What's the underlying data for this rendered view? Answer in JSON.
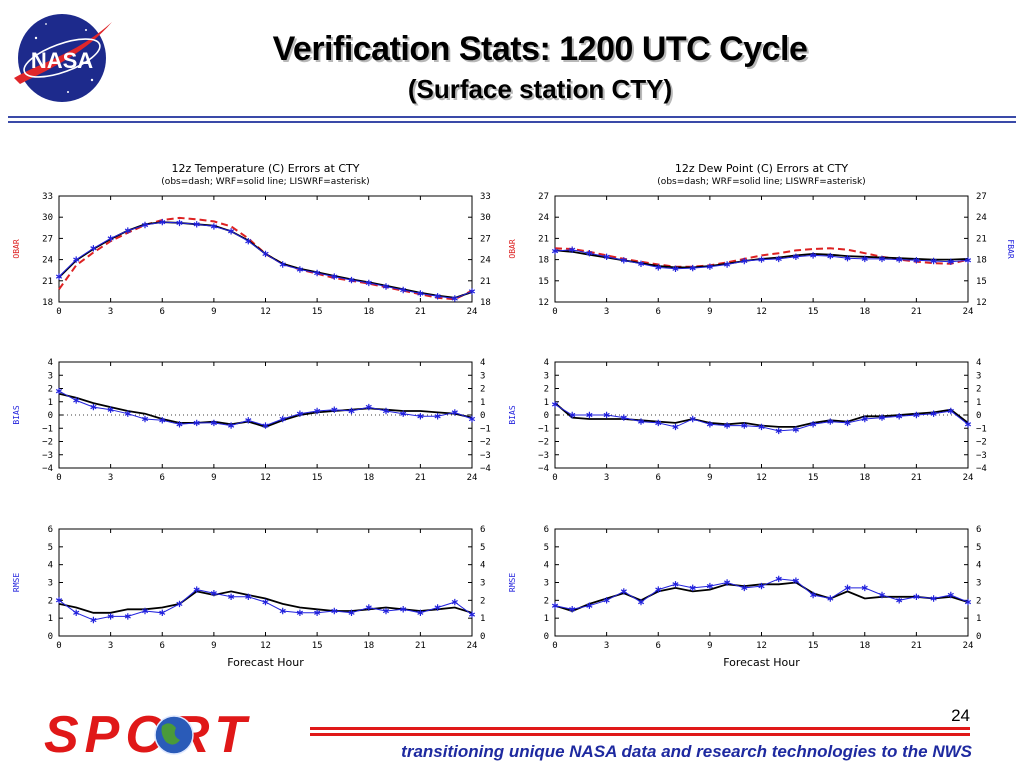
{
  "header": {
    "title": "Verification Stats: 1200 UTC Cycle",
    "subtitle": "(Surface station CTY)"
  },
  "logo_text": "NASA",
  "footer": {
    "logo_text": "SPORT",
    "tagline": "transitioning unique NASA data and research technologies to the NWS",
    "page_number": "24"
  },
  "colors": {
    "obs": "#dd2222",
    "wrf": "#000000",
    "liswrf": "#2222dd",
    "rule": "#3a4aa8",
    "footer_rule": "#e01818",
    "tagline": "#1e2aa0"
  },
  "chart_data": [
    {
      "id": "temp-mean",
      "type": "line",
      "title": "12z Temperature (C) Errors at CTY",
      "subtitle": "(obs=dash; WRF=solid line; LISWRF=asterisk)",
      "ylabel": "OBAR",
      "ylabel_color": "#dd2222",
      "ylabel_right": "",
      "xlabel": "",
      "xlim": [
        0,
        24
      ],
      "xticks": [
        0,
        3,
        6,
        9,
        12,
        15,
        18,
        21,
        24
      ],
      "ylim": [
        18,
        33
      ],
      "yticks": [
        18,
        21,
        24,
        27,
        30,
        33
      ],
      "x": [
        0,
        1,
        2,
        3,
        4,
        5,
        6,
        7,
        8,
        9,
        10,
        11,
        12,
        13,
        14,
        15,
        16,
        17,
        18,
        19,
        20,
        21,
        22,
        23,
        24
      ],
      "series": [
        {
          "name": "obs",
          "style": "dash",
          "values": [
            19.8,
            23.2,
            25.0,
            26.6,
            27.8,
            28.9,
            29.6,
            29.9,
            29.7,
            29.4,
            28.7,
            27.0,
            24.8,
            23.4,
            22.6,
            22.0,
            21.4,
            21.0,
            20.6,
            20.1,
            19.6,
            19.1,
            18.6,
            18.4,
            19.6
          ]
        },
        {
          "name": "WRF",
          "style": "solid",
          "values": [
            21.5,
            23.9,
            25.5,
            26.9,
            28.1,
            29.0,
            29.3,
            29.2,
            29.0,
            28.8,
            28.0,
            26.7,
            24.8,
            23.4,
            22.7,
            22.2,
            21.7,
            21.2,
            20.8,
            20.3,
            19.8,
            19.3,
            18.9,
            18.6,
            19.4
          ]
        },
        {
          "name": "LISWRF",
          "style": "asterisk",
          "values": [
            21.6,
            24.0,
            25.6,
            27.0,
            28.1,
            28.9,
            29.3,
            29.2,
            29.0,
            28.7,
            28.0,
            26.6,
            24.8,
            23.3,
            22.6,
            22.1,
            21.6,
            21.1,
            20.7,
            20.2,
            19.7,
            19.2,
            18.8,
            18.5,
            19.5
          ]
        }
      ]
    },
    {
      "id": "dew-mean",
      "type": "line",
      "title": "12z Dew Point (C) Errors at CTY",
      "subtitle": "(obs=dash; WRF=solid line; LISWRF=asterisk)",
      "ylabel": "OBAR",
      "ylabel_color": "#dd2222",
      "ylabel_right": "FBAR",
      "ylabel_right_color": "#2222dd",
      "xlabel": "",
      "xlim": [
        0,
        24
      ],
      "xticks": [
        0,
        3,
        6,
        9,
        12,
        15,
        18,
        21,
        24
      ],
      "ylim": [
        12,
        27
      ],
      "yticks": [
        12,
        15,
        18,
        21,
        24,
        27
      ],
      "x": [
        0,
        1,
        2,
        3,
        4,
        5,
        6,
        7,
        8,
        9,
        10,
        11,
        12,
        13,
        14,
        15,
        16,
        17,
        18,
        19,
        20,
        21,
        22,
        23,
        24
      ],
      "series": [
        {
          "name": "obs",
          "style": "dash",
          "values": [
            19.6,
            19.5,
            19.1,
            18.6,
            18.1,
            17.7,
            17.3,
            17.0,
            17.0,
            17.2,
            17.6,
            18.1,
            18.6,
            18.9,
            19.3,
            19.5,
            19.6,
            19.4,
            18.9,
            18.4,
            18.0,
            17.7,
            17.5,
            17.4,
            18.0
          ]
        },
        {
          "name": "WRF",
          "style": "solid",
          "values": [
            19.3,
            19.1,
            18.7,
            18.3,
            17.9,
            17.5,
            17.1,
            16.9,
            16.9,
            17.1,
            17.4,
            17.8,
            18.1,
            18.3,
            18.6,
            18.8,
            18.7,
            18.5,
            18.4,
            18.3,
            18.2,
            18.1,
            18.0,
            18.0,
            18.1
          ]
        },
        {
          "name": "LISWRF",
          "style": "asterisk",
          "values": [
            19.2,
            19.4,
            18.9,
            18.4,
            17.9,
            17.4,
            16.9,
            16.7,
            16.8,
            17.0,
            17.3,
            17.8,
            18.0,
            18.1,
            18.4,
            18.6,
            18.5,
            18.2,
            18.1,
            18.1,
            18.0,
            17.9,
            17.8,
            17.7,
            17.9
          ]
        }
      ]
    },
    {
      "id": "temp-bias",
      "type": "line",
      "title": "",
      "subtitle": "",
      "ylabel": "BIAS",
      "ylabel_color": "#2222dd",
      "ylabel_right": "",
      "xlabel": "",
      "xlim": [
        0,
        24
      ],
      "xticks": [
        0,
        3,
        6,
        9,
        12,
        15,
        18,
        21,
        24
      ],
      "ylim": [
        -4,
        4
      ],
      "yticks": [
        -4,
        -3,
        -2,
        -1,
        0,
        1,
        2,
        3,
        4
      ],
      "zero_line": true,
      "x": [
        0,
        1,
        2,
        3,
        4,
        5,
        6,
        7,
        8,
        9,
        10,
        11,
        12,
        13,
        14,
        15,
        16,
        17,
        18,
        19,
        20,
        21,
        22,
        23,
        24
      ],
      "series": [
        {
          "name": "WRF",
          "style": "solid",
          "values": [
            1.6,
            1.3,
            0.9,
            0.6,
            0.3,
            0.1,
            -0.3,
            -0.6,
            -0.6,
            -0.5,
            -0.7,
            -0.5,
            -0.9,
            -0.4,
            0.0,
            0.2,
            0.3,
            0.4,
            0.5,
            0.4,
            0.3,
            0.3,
            0.2,
            0.1,
            -0.2
          ]
        },
        {
          "name": "LISWRF",
          "style": "asterisk",
          "values": [
            1.8,
            1.1,
            0.6,
            0.4,
            0.1,
            -0.3,
            -0.4,
            -0.7,
            -0.6,
            -0.6,
            -0.8,
            -0.4,
            -0.8,
            -0.3,
            0.1,
            0.3,
            0.4,
            0.3,
            0.6,
            0.3,
            0.1,
            -0.1,
            -0.1,
            0.2,
            -0.3
          ]
        }
      ]
    },
    {
      "id": "dew-bias",
      "type": "line",
      "title": "",
      "subtitle": "",
      "ylabel": "BIAS",
      "ylabel_color": "#2222dd",
      "ylabel_right": "",
      "xlabel": "",
      "xlim": [
        0,
        24
      ],
      "xticks": [
        0,
        3,
        6,
        9,
        12,
        15,
        18,
        21,
        24
      ],
      "ylim": [
        -4,
        4
      ],
      "yticks": [
        -4,
        -3,
        -2,
        -1,
        0,
        1,
        2,
        3,
        4
      ],
      "zero_line": true,
      "x": [
        0,
        1,
        2,
        3,
        4,
        5,
        6,
        7,
        8,
        9,
        10,
        11,
        12,
        13,
        14,
        15,
        16,
        17,
        18,
        19,
        20,
        21,
        22,
        23,
        24
      ],
      "series": [
        {
          "name": "WRF",
          "style": "solid",
          "values": [
            0.9,
            -0.2,
            -0.3,
            -0.3,
            -0.3,
            -0.4,
            -0.5,
            -0.6,
            -0.3,
            -0.6,
            -0.7,
            -0.6,
            -0.8,
            -0.9,
            -0.9,
            -0.6,
            -0.4,
            -0.5,
            -0.1,
            -0.1,
            0.0,
            0.1,
            0.2,
            0.4,
            -0.6
          ]
        },
        {
          "name": "LISWRF",
          "style": "asterisk",
          "values": [
            0.8,
            0.0,
            0.0,
            0.0,
            -0.2,
            -0.5,
            -0.6,
            -0.9,
            -0.3,
            -0.7,
            -0.8,
            -0.8,
            -0.9,
            -1.2,
            -1.1,
            -0.7,
            -0.5,
            -0.6,
            -0.3,
            -0.2,
            -0.1,
            0.0,
            0.1,
            0.3,
            -0.7
          ]
        }
      ]
    },
    {
      "id": "temp-rmse",
      "type": "line",
      "title": "",
      "subtitle": "",
      "ylabel": "RMSE",
      "ylabel_color": "#2222dd",
      "ylabel_right": "",
      "xlabel": "Forecast Hour",
      "xlim": [
        0,
        24
      ],
      "xticks": [
        0,
        3,
        6,
        9,
        12,
        15,
        18,
        21,
        24
      ],
      "ylim": [
        0,
        6
      ],
      "yticks": [
        0,
        1,
        2,
        3,
        4,
        5,
        6
      ],
      "x": [
        0,
        1,
        2,
        3,
        4,
        5,
        6,
        7,
        8,
        9,
        10,
        11,
        12,
        13,
        14,
        15,
        16,
        17,
        18,
        19,
        20,
        21,
        22,
        23,
        24
      ],
      "series": [
        {
          "name": "WRF",
          "style": "solid",
          "values": [
            1.8,
            1.6,
            1.3,
            1.3,
            1.5,
            1.5,
            1.6,
            1.8,
            2.5,
            2.3,
            2.5,
            2.3,
            2.1,
            1.8,
            1.6,
            1.5,
            1.4,
            1.4,
            1.5,
            1.6,
            1.5,
            1.4,
            1.5,
            1.6,
            1.3
          ]
        },
        {
          "name": "LISWRF",
          "style": "asterisk",
          "values": [
            2.0,
            1.3,
            0.9,
            1.1,
            1.1,
            1.4,
            1.3,
            1.8,
            2.6,
            2.4,
            2.2,
            2.2,
            1.9,
            1.4,
            1.3,
            1.3,
            1.4,
            1.3,
            1.6,
            1.4,
            1.5,
            1.3,
            1.6,
            1.9,
            1.2
          ]
        }
      ]
    },
    {
      "id": "dew-rmse",
      "type": "line",
      "title": "",
      "subtitle": "",
      "ylabel": "RMSE",
      "ylabel_color": "#2222dd",
      "ylabel_right": "",
      "xlabel": "Forecast Hour",
      "xlim": [
        0,
        24
      ],
      "xticks": [
        0,
        3,
        6,
        9,
        12,
        15,
        18,
        21,
        24
      ],
      "ylim": [
        0,
        6
      ],
      "yticks": [
        0,
        1,
        2,
        3,
        4,
        5,
        6
      ],
      "x": [
        0,
        1,
        2,
        3,
        4,
        5,
        6,
        7,
        8,
        9,
        10,
        11,
        12,
        13,
        14,
        15,
        16,
        17,
        18,
        19,
        20,
        21,
        22,
        23,
        24
      ],
      "series": [
        {
          "name": "WRF",
          "style": "solid",
          "values": [
            1.7,
            1.4,
            1.8,
            2.1,
            2.4,
            2.0,
            2.5,
            2.7,
            2.5,
            2.6,
            2.9,
            2.8,
            2.9,
            2.9,
            3.0,
            2.4,
            2.1,
            2.5,
            2.1,
            2.2,
            2.2,
            2.2,
            2.1,
            2.2,
            1.9
          ]
        },
        {
          "name": "LISWRF",
          "style": "asterisk",
          "values": [
            1.7,
            1.5,
            1.7,
            2.0,
            2.5,
            1.9,
            2.6,
            2.9,
            2.7,
            2.8,
            3.0,
            2.7,
            2.8,
            3.2,
            3.1,
            2.3,
            2.1,
            2.7,
            2.7,
            2.3,
            2.0,
            2.2,
            2.1,
            2.3,
            1.9
          ]
        }
      ]
    }
  ]
}
